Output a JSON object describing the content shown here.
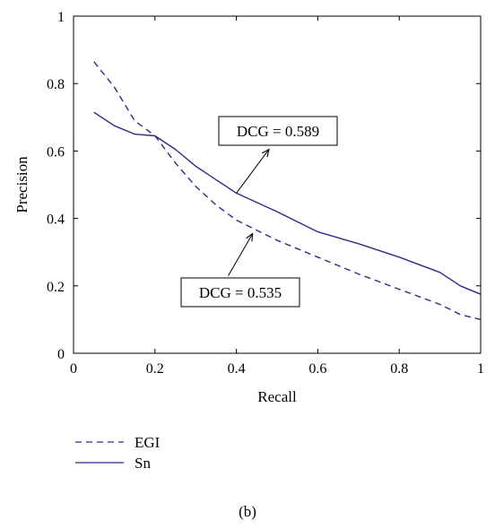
{
  "chart_data": {
    "type": "line",
    "title": "",
    "xlabel": "Recall",
    "ylabel": "Precision",
    "xlim": [
      0,
      1
    ],
    "ylim": [
      0,
      1
    ],
    "x_ticks": [
      "0",
      "0.2",
      "0.4",
      "0.6",
      "0.8",
      "1"
    ],
    "y_ticks": [
      "0",
      "0.2",
      "0.4",
      "0.6",
      "0.8",
      "1"
    ],
    "grid": false,
    "legend_position": "below",
    "series": [
      {
        "name": "EGI",
        "style": "dashed",
        "color": "#2b2b8c",
        "x": [
          0.05,
          0.1,
          0.15,
          0.2,
          0.25,
          0.3,
          0.35,
          0.4,
          0.5,
          0.6,
          0.7,
          0.8,
          0.9,
          0.95,
          1.0
        ],
        "y": [
          0.865,
          0.79,
          0.69,
          0.645,
          0.565,
          0.495,
          0.44,
          0.395,
          0.335,
          0.285,
          0.235,
          0.19,
          0.145,
          0.115,
          0.1
        ]
      },
      {
        "name": "Sn",
        "style": "solid",
        "color": "#2b2b8c",
        "x": [
          0.05,
          0.1,
          0.15,
          0.2,
          0.25,
          0.3,
          0.35,
          0.4,
          0.5,
          0.6,
          0.7,
          0.8,
          0.9,
          0.95,
          1.0
        ],
        "y": [
          0.715,
          0.675,
          0.65,
          0.645,
          0.605,
          0.555,
          0.515,
          0.475,
          0.42,
          0.36,
          0.325,
          0.285,
          0.24,
          0.2,
          0.175
        ]
      }
    ],
    "annotations": [
      {
        "text": "DCG = 0.589",
        "series": "Sn",
        "arrow_from": [
          0.48,
          0.605
        ],
        "arrow_to": [
          0.4,
          0.475
        ]
      },
      {
        "text": "DCG = 0.535",
        "series": "EGI",
        "arrow_from": [
          0.44,
          0.355
        ],
        "arrow_to": [
          0.38,
          0.23
        ]
      }
    ]
  },
  "caption": "(b)"
}
